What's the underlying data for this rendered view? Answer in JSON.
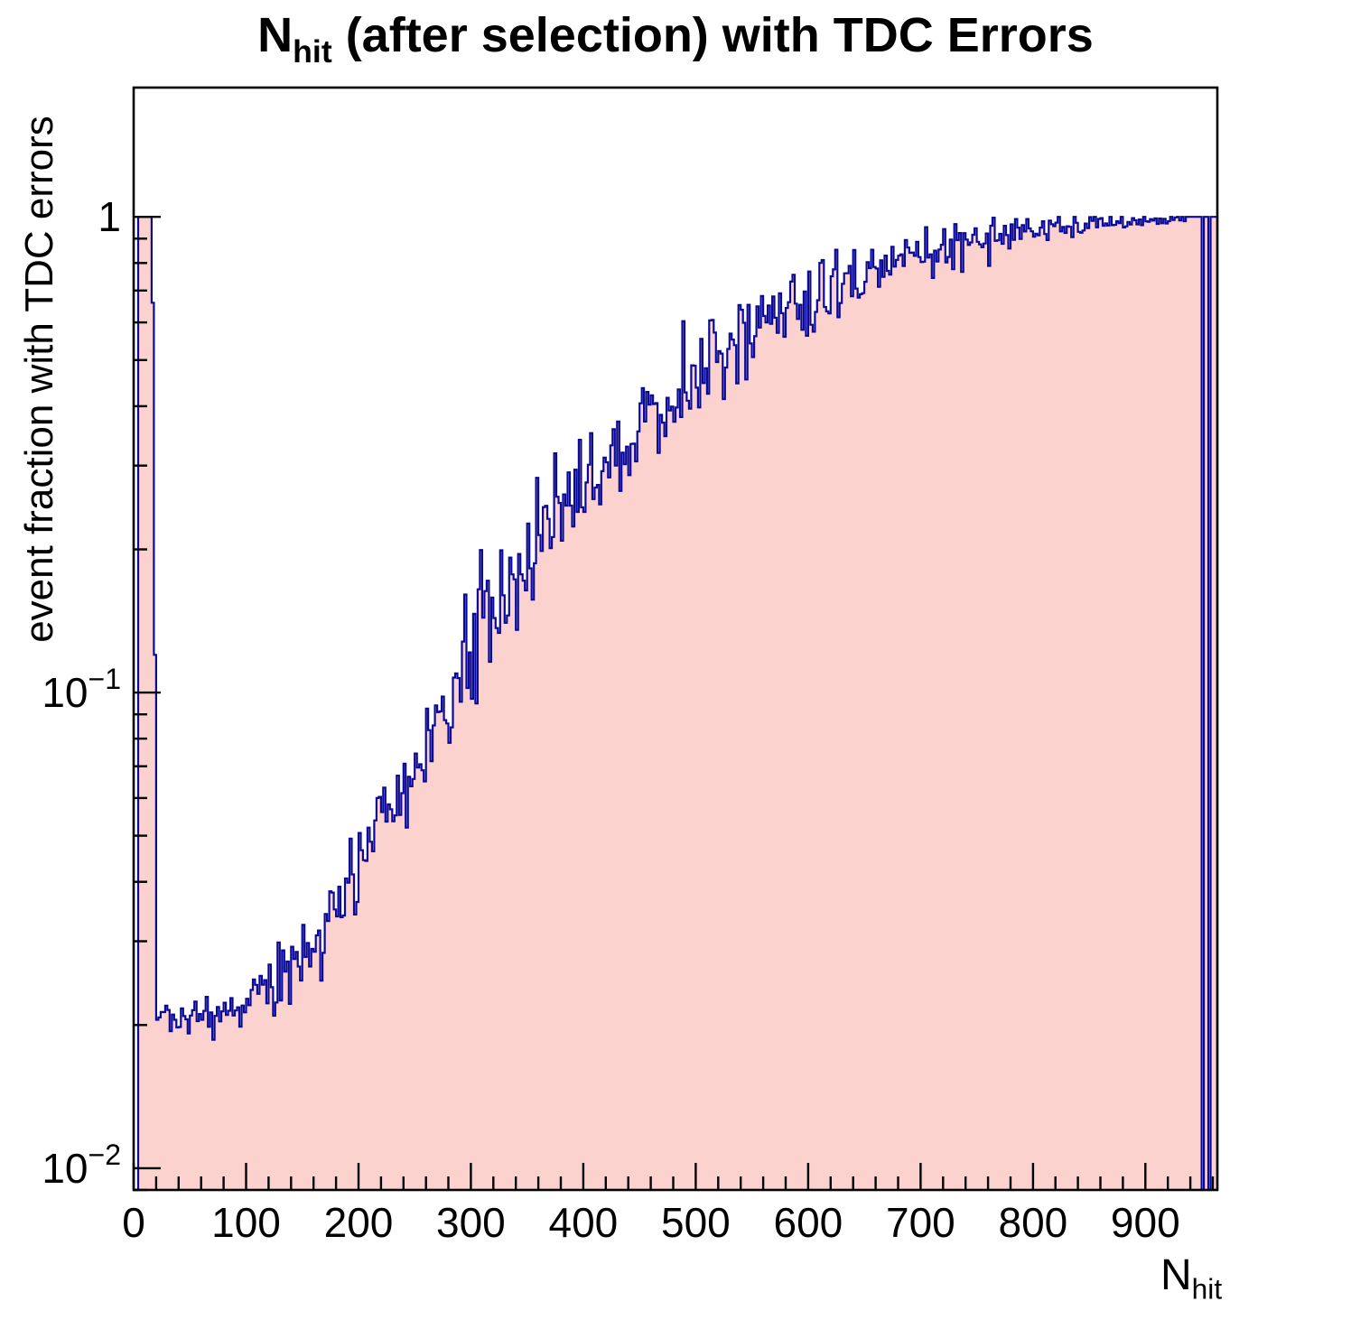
{
  "page": {
    "background": "#ffffff"
  },
  "chart_data": {
    "type": "histogram",
    "title_parts": {
      "prefix": "N",
      "subscript": "hit",
      "suffix": " (after selection) with TDC Errors"
    },
    "xlabel_parts": {
      "prefix": "N",
      "subscript": "hit"
    },
    "ylabel": "event fraction with TDC errors",
    "x_range": [
      0,
      964
    ],
    "y_range_log": [
      0.009,
      1.87
    ],
    "y_scale": "log",
    "bin_width": 2,
    "x_major_ticks": [
      0,
      100,
      200,
      300,
      400,
      500,
      600,
      700,
      800,
      900
    ],
    "x_minor_step": 20,
    "y_major_ticks": [
      1,
      0.1,
      0.01
    ],
    "colors": {
      "line": "#0a0a99",
      "fill": "#fcd2cf",
      "axis": "#000000"
    },
    "seed": 20,
    "spike": {
      "x0": 4,
      "x1": 16,
      "value": 1.0
    },
    "spike_tail": [
      [
        16,
        0.66
      ],
      [
        18,
        0.12
      ]
    ],
    "gap_bins": [
      950,
      956
    ],
    "plateau_start": 938,
    "trend_anchors": [
      [
        20,
        0.021
      ],
      [
        40,
        0.0205
      ],
      [
        60,
        0.021
      ],
      [
        80,
        0.0215
      ],
      [
        100,
        0.022
      ],
      [
        120,
        0.024
      ],
      [
        140,
        0.027
      ],
      [
        160,
        0.03
      ],
      [
        180,
        0.036
      ],
      [
        200,
        0.046
      ],
      [
        220,
        0.053
      ],
      [
        240,
        0.062
      ],
      [
        260,
        0.075
      ],
      [
        280,
        0.095
      ],
      [
        300,
        0.13
      ],
      [
        320,
        0.15
      ],
      [
        340,
        0.17
      ],
      [
        360,
        0.21
      ],
      [
        380,
        0.25
      ],
      [
        400,
        0.28
      ],
      [
        420,
        0.31
      ],
      [
        440,
        0.34
      ],
      [
        460,
        0.38
      ],
      [
        480,
        0.42
      ],
      [
        500,
        0.46
      ],
      [
        520,
        0.5
      ],
      [
        540,
        0.54
      ],
      [
        560,
        0.59
      ],
      [
        580,
        0.63
      ],
      [
        600,
        0.66
      ],
      [
        620,
        0.7
      ],
      [
        640,
        0.73
      ],
      [
        660,
        0.77
      ],
      [
        680,
        0.8
      ],
      [
        700,
        0.83
      ],
      [
        720,
        0.86
      ],
      [
        740,
        0.885
      ],
      [
        760,
        0.905
      ],
      [
        780,
        0.925
      ],
      [
        800,
        0.945
      ],
      [
        820,
        0.955
      ],
      [
        840,
        0.965
      ],
      [
        860,
        0.972
      ],
      [
        880,
        0.978
      ],
      [
        900,
        0.984
      ],
      [
        920,
        0.99
      ],
      [
        938,
        0.995
      ],
      [
        964,
        1.0
      ]
    ],
    "noise_anchors": [
      [
        20,
        0.018
      ],
      [
        100,
        0.022
      ],
      [
        150,
        0.04
      ],
      [
        200,
        0.05
      ],
      [
        250,
        0.06
      ],
      [
        300,
        0.065
      ],
      [
        350,
        0.06
      ],
      [
        400,
        0.055
      ],
      [
        450,
        0.05
      ],
      [
        500,
        0.045
      ],
      [
        550,
        0.045
      ],
      [
        600,
        0.04
      ],
      [
        650,
        0.035
      ],
      [
        700,
        0.028
      ],
      [
        750,
        0.02
      ],
      [
        800,
        0.014
      ],
      [
        850,
        0.01
      ],
      [
        900,
        0.007
      ],
      [
        960,
        0.004
      ]
    ]
  }
}
